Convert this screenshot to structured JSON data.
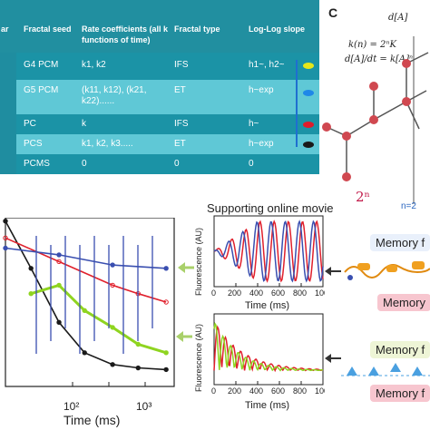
{
  "table": {
    "headers": [
      "ar",
      "Fractal seed",
      "Rate coefficients (all k functions of time)",
      "Fractal type",
      "Log-Log slope"
    ],
    "rows": [
      {
        "seed": "G4 PCM",
        "rate": "k1, k2",
        "type": "IFS",
        "slope": "h1~, h2~",
        "dot_color": "#e6e619"
      },
      {
        "seed": "G5 PCM",
        "rate": "(k11, k12), (k21, k22)......",
        "type": "ET",
        "slope": "h~exp",
        "dot_color": "#1f88e8"
      },
      {
        "seed": "PC",
        "rate": "k",
        "type": "IFS",
        "slope": "h~",
        "dot_color": "#e01b2b"
      },
      {
        "seed": "PCS",
        "rate": "k1, k2, k3.....",
        "type": "ET",
        "slope": "h~exp",
        "dot_color": "#1a1a1a"
      },
      {
        "seed": "PCMS",
        "rate": "0",
        "type": "0",
        "slope": "0",
        "dot_color": ""
      }
    ]
  },
  "diagram": {
    "panel_label": "C",
    "eq1": "k(n) = 2ⁿK",
    "eq2": "d[A]/dt = k[A]ⁿ",
    "eq_top": "d[A]",
    "power_label": "2ⁿ",
    "n_label": "n=2"
  },
  "supporting_title": "Supporting online movie",
  "memory": {
    "label1": "Memory f",
    "label2": "Memory",
    "label3": "Memory f",
    "label4": "Memory f"
  },
  "colors": {
    "table_header": "#218fa0",
    "table_row_dark": "#1b93a6",
    "table_row_light": "#5fc8d6",
    "red": "#e0202c",
    "blue": "#3a4fb0",
    "green": "#8fd420",
    "pink_box": "#f7c6cf"
  },
  "chart_data": [
    {
      "type": "line",
      "id": "main-loglog",
      "xlabel": "Time (ms)",
      "ylabel": "",
      "x_scale": "log",
      "xticks": [
        "10²",
        "10³"
      ],
      "series": [
        {
          "color": "#1a1a1a",
          "x": [
            1,
            3,
            10,
            30,
            100,
            300,
            1000
          ],
          "y": [
            0.98,
            0.7,
            0.38,
            0.2,
            0.13,
            0.11,
            0.1
          ]
        },
        {
          "color": "#e0202c",
          "x": [
            1,
            10,
            100,
            300,
            1000
          ],
          "y": [
            0.88,
            0.74,
            0.6,
            0.55,
            0.5
          ]
        },
        {
          "color": "#3a4fb0",
          "x": [
            1,
            10,
            100,
            1000
          ],
          "y": [
            0.82,
            0.78,
            0.72,
            0.7
          ]
        },
        {
          "color": "#8fd420",
          "x": [
            3,
            10,
            30,
            100,
            300,
            1000
          ],
          "y": [
            0.55,
            0.6,
            0.45,
            0.35,
            0.25,
            0.2
          ]
        }
      ]
    },
    {
      "type": "line",
      "id": "movie-top",
      "xlabel": "Time (ms)",
      "ylabel": "Fluorescence (AU)",
      "xlim": [
        0,
        1000
      ],
      "xticks": [
        0,
        200,
        400,
        600,
        800,
        1000
      ],
      "series": [
        {
          "color": "#e0202c",
          "period": 130,
          "decay": 0
        },
        {
          "color": "#3a4fb0",
          "period": 130,
          "decay": 0
        }
      ]
    },
    {
      "type": "line",
      "id": "movie-bottom",
      "xlabel": "Time (ms)",
      "ylabel": "Fluorescence (AU)",
      "xlim": [
        0,
        1000
      ],
      "xticks": [
        0,
        200,
        400,
        600,
        800,
        1000
      ],
      "series": [
        {
          "color": "#e0202c"
        },
        {
          "color": "#8fd420"
        }
      ]
    }
  ]
}
